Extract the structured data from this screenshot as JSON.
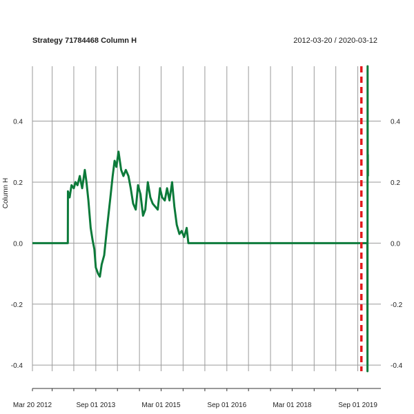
{
  "chart_data": {
    "type": "line",
    "title": "Strategy 71784468 Column H",
    "date_range": "2012-03-20 / 2020-03-12",
    "ylabel": "Column H",
    "xlim": [
      "2012-03-20",
      "2020-03-12"
    ],
    "ylim": [
      -0.42,
      0.58
    ],
    "yticks": [
      -0.4,
      -0.2,
      0.0,
      0.2,
      0.4
    ],
    "ytick_labels": [
      "-0.4",
      "-0.2",
      "0.0",
      "0.2",
      "0.4"
    ],
    "xtick_labels": [
      {
        "date": "2012-03-20",
        "label": "Mar 20 2012"
      },
      {
        "date": "2013-09-01",
        "label": "Sep 01 2013"
      },
      {
        "date": "2015-03-01",
        "label": "Mar 01 2015"
      },
      {
        "date": "2016-09-01",
        "label": "Sep 01 2016"
      },
      {
        "date": "2018-03-01",
        "label": "Mar 01 2018"
      },
      {
        "date": "2019-09-01",
        "label": "Sep 01 2019"
      }
    ],
    "grid_dates": [
      "2012-03-20",
      "2012-09-01",
      "2013-03-01",
      "2013-09-01",
      "2014-03-01",
      "2014-09-01",
      "2015-03-01",
      "2015-09-01",
      "2016-03-01",
      "2016-09-01",
      "2017-03-01",
      "2017-09-01",
      "2018-03-01",
      "2018-09-01",
      "2019-03-01",
      "2019-09-01"
    ],
    "grid": true,
    "vline": {
      "date": "2019-10-01",
      "color": "#e31a1c",
      "style": "dashed"
    },
    "series": [
      {
        "color": "#0c7a3a",
        "x": [
          "2012-03-20",
          "2013-01-10",
          "2013-01-11",
          "2013-01-25",
          "2013-02-10",
          "2013-03-01",
          "2013-03-15",
          "2013-04-01",
          "2013-04-20",
          "2013-05-10",
          "2013-06-01",
          "2013-06-15",
          "2013-07-01",
          "2013-07-20",
          "2013-08-05",
          "2013-08-20",
          "2013-09-01",
          "2013-09-20",
          "2013-10-05",
          "2013-10-20",
          "2013-11-10",
          "2013-12-01",
          "2014-01-01",
          "2014-01-20",
          "2014-02-05",
          "2014-02-20",
          "2014-03-10",
          "2014-04-01",
          "2014-04-20",
          "2014-05-10",
          "2014-06-01",
          "2014-06-20",
          "2014-07-10",
          "2014-08-01",
          "2014-08-20",
          "2014-09-10",
          "2014-10-01",
          "2014-10-20",
          "2014-11-10",
          "2014-12-01",
          "2014-12-20",
          "2015-01-10",
          "2015-02-01",
          "2015-02-20",
          "2015-03-10",
          "2015-04-01",
          "2015-04-20",
          "2015-05-10",
          "2015-06-01",
          "2015-06-20",
          "2015-07-10",
          "2015-08-01",
          "2015-08-20",
          "2015-09-10",
          "2015-10-01",
          "2015-10-15",
          "2015-10-25",
          "2019-11-20",
          "2019-11-21",
          "2019-11-22",
          "2019-11-23",
          "2019-11-24",
          "2019-11-25"
        ],
        "y": [
          0.0,
          0.0,
          0.17,
          0.15,
          0.19,
          0.18,
          0.2,
          0.19,
          0.22,
          0.18,
          0.24,
          0.2,
          0.14,
          0.05,
          0.01,
          -0.02,
          -0.08,
          -0.1,
          -0.11,
          -0.07,
          -0.04,
          0.04,
          0.15,
          0.22,
          0.27,
          0.25,
          0.3,
          0.24,
          0.22,
          0.24,
          0.22,
          0.18,
          0.13,
          0.11,
          0.19,
          0.16,
          0.09,
          0.11,
          0.2,
          0.15,
          0.13,
          0.12,
          0.11,
          0.18,
          0.15,
          0.14,
          0.18,
          0.14,
          0.2,
          0.12,
          0.06,
          0.03,
          0.04,
          0.02,
          0.05,
          0.0,
          0.0,
          0.0,
          -0.42,
          0.58,
          0.22,
          0.29,
          0.22
        ]
      }
    ]
  }
}
